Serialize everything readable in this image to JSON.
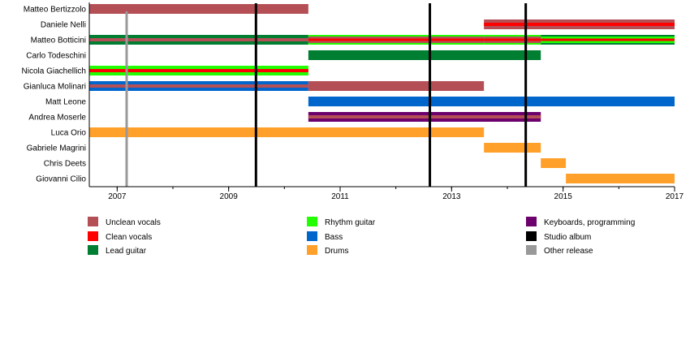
{
  "chart_data": {
    "type": "timeline",
    "xlim": [
      2006.5,
      2017
    ],
    "x_ticks": [
      2007,
      2009,
      2011,
      2013,
      2015,
      2017
    ],
    "minor_ticks_every_year": true,
    "roles": {
      "unclean": {
        "label": "Unclean vocals",
        "color": "#b44f56"
      },
      "clean": {
        "label": "Clean vocals",
        "color": "#ff0000"
      },
      "lead": {
        "label": "Lead guitar",
        "color": "#007f33"
      },
      "rhythm": {
        "label": "Rhythm guitar",
        "color": "#22ff00"
      },
      "bass": {
        "label": "Bass",
        "color": "#0066cc"
      },
      "drums": {
        "label": "Drums",
        "color": "#ffa02a"
      },
      "keys": {
        "label": "Keyboards, programming",
        "color": "#6c006c"
      },
      "studio": {
        "label": "Studio album",
        "color": "#000000"
      },
      "other": {
        "label": "Other release",
        "color": "#999999"
      }
    },
    "legend_order": [
      [
        "unclean",
        "clean",
        "lead"
      ],
      [
        "rhythm",
        "bass",
        "drums"
      ],
      [
        "keys",
        "studio",
        "other"
      ]
    ],
    "studio_albums": [
      2009.49,
      2012.61,
      2014.33
    ],
    "other_releases": [
      2007.17
    ],
    "members": [
      {
        "name": "Matteo Bertizzolo",
        "segments": [
          {
            "from": 2006.5,
            "to": 2010.43,
            "roles": [
              "unclean"
            ]
          }
        ]
      },
      {
        "name": "Daniele Nelli",
        "segments": [
          {
            "from": 2013.58,
            "to": 2017,
            "roles": [
              "unclean",
              "clean"
            ]
          }
        ]
      },
      {
        "name": "Matteo Botticini",
        "segments": [
          {
            "from": 2006.5,
            "to": 2010.43,
            "roles": [
              "lead",
              "unclean"
            ]
          },
          {
            "from": 2010.43,
            "to": 2013.58,
            "roles": [
              "rhythm",
              "unclean",
              "clean"
            ]
          },
          {
            "from": 2013.58,
            "to": 2014.6,
            "roles": [
              "rhythm",
              "unclean",
              "clean"
            ]
          },
          {
            "from": 2014.6,
            "to": 2017,
            "roles": [
              "lead",
              "rhythm",
              "clean"
            ]
          }
        ]
      },
      {
        "name": "Carlo Todeschini",
        "segments": [
          {
            "from": 2010.43,
            "to": 2014.6,
            "roles": [
              "lead"
            ]
          }
        ]
      },
      {
        "name": "Nicola Giachellich",
        "segments": [
          {
            "from": 2006.5,
            "to": 2010.43,
            "roles": [
              "rhythm",
              "clean"
            ]
          }
        ]
      },
      {
        "name": "Gianluca Molinari",
        "segments": [
          {
            "from": 2006.5,
            "to": 2010.43,
            "roles": [
              "bass",
              "unclean"
            ]
          },
          {
            "from": 2010.43,
            "to": 2013.58,
            "roles": [
              "unclean"
            ]
          }
        ]
      },
      {
        "name": "Matt Leone",
        "segments": [
          {
            "from": 2010.43,
            "to": 2017,
            "roles": [
              "bass"
            ]
          }
        ]
      },
      {
        "name": "Andrea Moserle",
        "segments": [
          {
            "from": 2010.43,
            "to": 2014.6,
            "roles": [
              "keys",
              "unclean"
            ]
          }
        ]
      },
      {
        "name": "Luca Orio",
        "segments": [
          {
            "from": 2006.5,
            "to": 2013.58,
            "roles": [
              "drums"
            ]
          }
        ]
      },
      {
        "name": "Gabriele Magrini",
        "segments": [
          {
            "from": 2013.58,
            "to": 2014.6,
            "roles": [
              "drums"
            ]
          }
        ]
      },
      {
        "name": "Chris Deets",
        "segments": [
          {
            "from": 2014.6,
            "to": 2015.05,
            "roles": [
              "drums"
            ]
          }
        ]
      },
      {
        "name": "Giovanni Cilio",
        "segments": [
          {
            "from": 2015.05,
            "to": 2017,
            "roles": [
              "drums"
            ]
          }
        ]
      }
    ]
  }
}
